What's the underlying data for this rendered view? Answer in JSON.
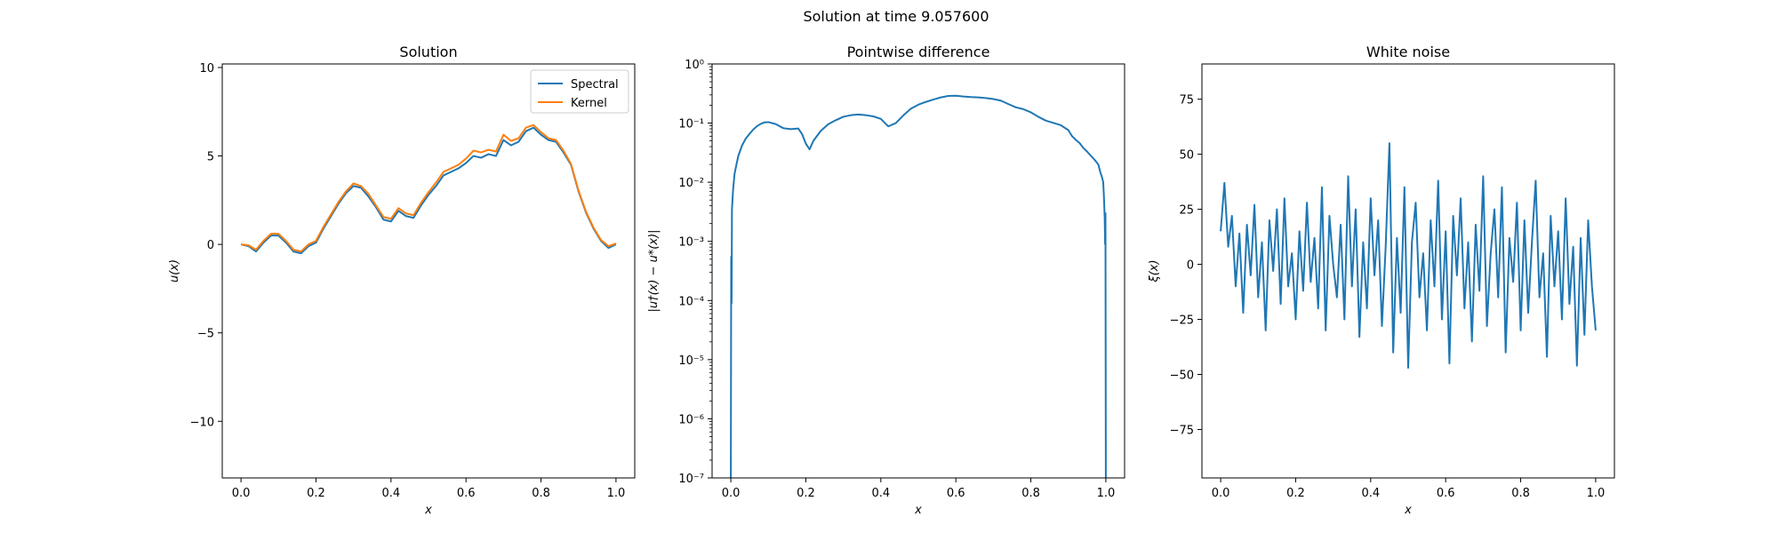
{
  "suptitle": "Solution at time 9.057600",
  "colors": {
    "spectral": "#1f77b4",
    "kernel": "#ff7f0e"
  },
  "chart_data": [
    {
      "type": "line",
      "title": "Solution",
      "xlabel": "x",
      "ylabel": "u(x)",
      "xlim": [
        -0.05,
        1.05
      ],
      "ylim": [
        -13.2,
        10.2
      ],
      "yscale": "linear",
      "xticks": [
        0.0,
        0.2,
        0.4,
        0.6,
        0.8,
        1.0
      ],
      "xticklabels": [
        "0.0",
        "0.2",
        "0.4",
        "0.6",
        "0.8",
        "1.0"
      ],
      "yticks": [
        -10,
        -5,
        0,
        5,
        10
      ],
      "yticklabels": [
        "−10",
        "−5",
        "0",
        "5",
        "10"
      ],
      "legend": "top-right",
      "x": [
        0.0,
        0.02,
        0.04,
        0.06,
        0.08,
        0.1,
        0.12,
        0.14,
        0.16,
        0.18,
        0.2,
        0.22,
        0.24,
        0.26,
        0.28,
        0.3,
        0.32,
        0.34,
        0.36,
        0.38,
        0.4,
        0.42,
        0.44,
        0.46,
        0.48,
        0.5,
        0.52,
        0.54,
        0.56,
        0.58,
        0.6,
        0.62,
        0.64,
        0.66,
        0.68,
        0.7,
        0.72,
        0.74,
        0.76,
        0.78,
        0.8,
        0.82,
        0.84,
        0.86,
        0.88,
        0.9,
        0.92,
        0.94,
        0.96,
        0.98,
        1.0
      ],
      "series": [
        {
          "name": "Spectral",
          "values": [
            0.0,
            -0.1,
            -0.4,
            0.1,
            0.5,
            0.5,
            0.1,
            -0.4,
            -0.5,
            -0.1,
            0.1,
            0.9,
            1.6,
            2.3,
            2.9,
            3.3,
            3.2,
            2.7,
            2.1,
            1.4,
            1.3,
            1.9,
            1.6,
            1.5,
            2.2,
            2.8,
            3.3,
            3.9,
            4.1,
            4.3,
            4.6,
            5.0,
            4.9,
            5.1,
            5.0,
            5.9,
            5.6,
            5.8,
            6.4,
            6.6,
            6.2,
            5.9,
            5.8,
            5.2,
            4.5,
            3.0,
            1.8,
            0.9,
            0.2,
            -0.2,
            0.0
          ]
        },
        {
          "name": "Kernel",
          "values": [
            0.0,
            -0.05,
            -0.3,
            0.2,
            0.6,
            0.6,
            0.2,
            -0.3,
            -0.4,
            0.0,
            0.2,
            1.0,
            1.7,
            2.4,
            3.0,
            3.45,
            3.3,
            2.85,
            2.2,
            1.55,
            1.45,
            2.05,
            1.75,
            1.65,
            2.35,
            2.95,
            3.5,
            4.1,
            4.3,
            4.5,
            4.85,
            5.3,
            5.2,
            5.35,
            5.25,
            6.2,
            5.85,
            6.0,
            6.6,
            6.75,
            6.35,
            6.0,
            5.9,
            5.3,
            4.55,
            3.05,
            1.85,
            0.95,
            0.25,
            -0.1,
            0.05
          ]
        }
      ]
    },
    {
      "type": "line",
      "title": "Pointwise difference",
      "xlabel": "x",
      "ylabel": "|u†(x) − u*(x)|",
      "xlim": [
        -0.05,
        1.05
      ],
      "ylim": [
        1e-07,
        1
      ],
      "yscale": "log",
      "xticks": [
        0.0,
        0.2,
        0.4,
        0.6,
        0.8,
        1.0
      ],
      "xticklabels": [
        "0.0",
        "0.2",
        "0.4",
        "0.6",
        "0.8",
        "1.0"
      ],
      "yticks": [
        -7,
        -6,
        -5,
        -4,
        -3,
        -2,
        -1,
        0
      ],
      "yticklabels": [
        "10⁻⁷",
        "10⁻⁶",
        "10⁻⁵",
        "10⁻⁴",
        "10⁻³",
        "10⁻²",
        "10⁻¹",
        "10⁰"
      ],
      "x": [
        0.0,
        0.001,
        0.002,
        0.003,
        0.004,
        0.006,
        0.01,
        0.015,
        0.02,
        0.03,
        0.04,
        0.05,
        0.06,
        0.07,
        0.08,
        0.09,
        0.1,
        0.12,
        0.14,
        0.16,
        0.18,
        0.19,
        0.2,
        0.21,
        0.22,
        0.24,
        0.26,
        0.28,
        0.3,
        0.32,
        0.34,
        0.36,
        0.38,
        0.4,
        0.42,
        0.44,
        0.46,
        0.48,
        0.5,
        0.52,
        0.54,
        0.56,
        0.58,
        0.6,
        0.62,
        0.64,
        0.66,
        0.68,
        0.7,
        0.72,
        0.74,
        0.76,
        0.78,
        0.8,
        0.82,
        0.84,
        0.86,
        0.88,
        0.9,
        0.91,
        0.92,
        0.93,
        0.94,
        0.95,
        0.96,
        0.97,
        0.98,
        0.985,
        0.99,
        0.993,
        0.995,
        0.997,
        0.998,
        0.999,
        1.0
      ],
      "values": [
        1e-07,
        0.00055,
        9e-05,
        0.0035,
        0.0045,
        0.0075,
        0.014,
        0.02,
        0.028,
        0.042,
        0.055,
        0.066,
        0.078,
        0.089,
        0.097,
        0.103,
        0.104,
        0.096,
        0.082,
        0.079,
        0.081,
        0.065,
        0.045,
        0.036,
        0.05,
        0.074,
        0.096,
        0.112,
        0.128,
        0.136,
        0.14,
        0.136,
        0.13,
        0.118,
        0.088,
        0.1,
        0.135,
        0.175,
        0.205,
        0.228,
        0.25,
        0.272,
        0.288,
        0.29,
        0.282,
        0.276,
        0.272,
        0.265,
        0.255,
        0.24,
        0.21,
        0.185,
        0.172,
        0.152,
        0.128,
        0.11,
        0.101,
        0.092,
        0.076,
        0.06,
        0.052,
        0.046,
        0.038,
        0.033,
        0.028,
        0.024,
        0.02,
        0.015,
        0.012,
        0.01,
        0.0055,
        0.0025,
        0.0009,
        0.003,
        1e-07
      ]
    },
    {
      "type": "line",
      "title": "White noise",
      "xlabel": "x",
      "ylabel": "ξ(x)",
      "xlim": [
        -0.05,
        1.05
      ],
      "ylim": [
        -97,
        91
      ],
      "yscale": "linear",
      "xticks": [
        0.0,
        0.2,
        0.4,
        0.6,
        0.8,
        1.0
      ],
      "xticklabels": [
        "0.0",
        "0.2",
        "0.4",
        "0.6",
        "0.8",
        "1.0"
      ],
      "yticks": [
        -75,
        -50,
        -25,
        0,
        25,
        50,
        75
      ],
      "yticklabels": [
        "−75",
        "−50",
        "−25",
        "0",
        "25",
        "50",
        "75"
      ],
      "x": [
        0.0,
        0.01,
        0.02,
        0.03,
        0.04,
        0.05,
        0.06,
        0.07,
        0.08,
        0.09,
        0.1,
        0.11,
        0.12,
        0.13,
        0.14,
        0.15,
        0.16,
        0.17,
        0.18,
        0.19,
        0.2,
        0.21,
        0.22,
        0.23,
        0.24,
        0.25,
        0.26,
        0.27,
        0.28,
        0.29,
        0.3,
        0.31,
        0.32,
        0.33,
        0.34,
        0.35,
        0.36,
        0.37,
        0.38,
        0.39,
        0.4,
        0.41,
        0.42,
        0.43,
        0.44,
        0.45,
        0.46,
        0.47,
        0.48,
        0.49,
        0.5,
        0.51,
        0.52,
        0.53,
        0.54,
        0.55,
        0.56,
        0.57,
        0.58,
        0.59,
        0.6,
        0.61,
        0.62,
        0.63,
        0.64,
        0.65,
        0.66,
        0.67,
        0.68,
        0.69,
        0.7,
        0.71,
        0.72,
        0.73,
        0.74,
        0.75,
        0.76,
        0.77,
        0.78,
        0.79,
        0.8,
        0.81,
        0.82,
        0.83,
        0.84,
        0.85,
        0.86,
        0.87,
        0.88,
        0.89,
        0.9,
        0.91,
        0.92,
        0.93,
        0.94,
        0.95,
        0.96,
        0.97,
        0.98,
        0.99,
        1.0
      ],
      "values": [
        15,
        37,
        8,
        22,
        -10,
        14,
        -22,
        18,
        -5,
        27,
        -15,
        10,
        -30,
        20,
        -3,
        25,
        -18,
        30,
        -10,
        5,
        -25,
        15,
        -12,
        28,
        -8,
        12,
        -20,
        35,
        -30,
        22,
        0,
        -15,
        18,
        -25,
        40,
        -10,
        25,
        -33,
        10,
        -20,
        30,
        -5,
        20,
        -28,
        8,
        55,
        -40,
        12,
        -22,
        35,
        -47,
        10,
        28,
        -15,
        5,
        -30,
        20,
        -10,
        38,
        -25,
        15,
        -45,
        22,
        -5,
        30,
        -20,
        10,
        -35,
        18,
        -12,
        40,
        -28,
        5,
        25,
        -15,
        35,
        -40,
        12,
        -8,
        28,
        -30,
        20,
        -22,
        10,
        38,
        -15,
        5,
        -42,
        22,
        -10,
        15,
        -25,
        30,
        -18,
        8,
        -46,
        12,
        -32,
        20,
        -10,
        -30
      ]
    }
  ]
}
